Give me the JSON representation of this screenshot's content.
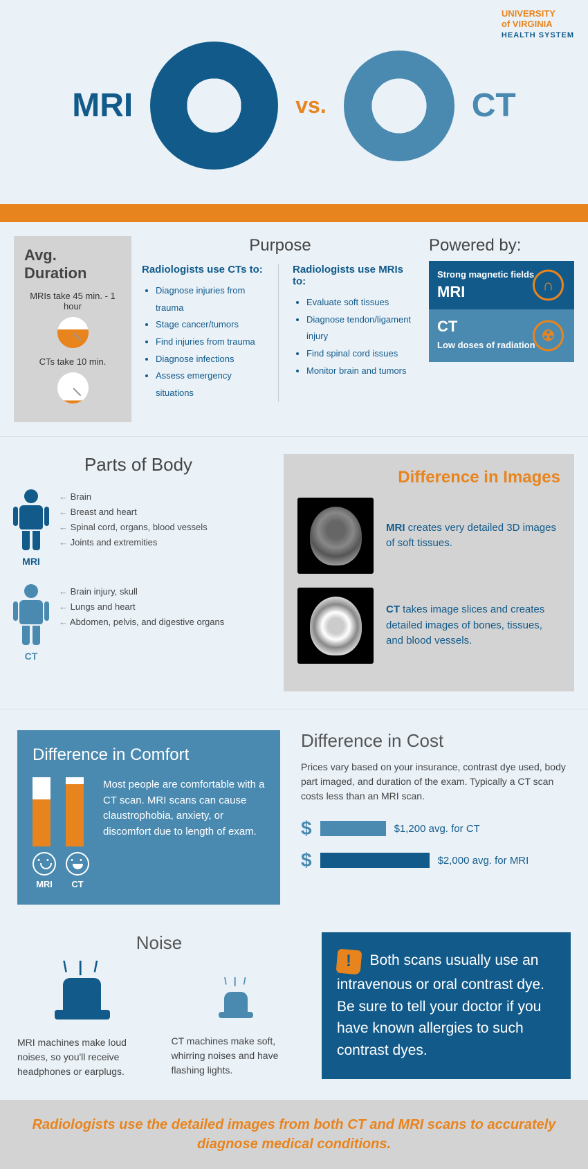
{
  "logo": {
    "line1": "UNIVERSITY",
    "line2": "of VIRGINIA",
    "line3": "HEALTH SYSTEM"
  },
  "header": {
    "mri": "MRI",
    "vs": "vs.",
    "ct": "CT"
  },
  "colors": {
    "mri": "#125a8a",
    "ct": "#4a8ab0",
    "accent": "#e8841e",
    "bg": "#eaf2f8",
    "gray": "#d3d3d3"
  },
  "duration": {
    "title": "Avg. Duration",
    "mri_text": "MRIs take 45 min. - 1 hour",
    "ct_text": "CTs take 10 min."
  },
  "purpose": {
    "title": "Purpose",
    "ct_head": "Radiologists use CTs to:",
    "ct_items": [
      "Diagnose injuries from trauma",
      "Stage cancer/tumors",
      "Find injuries from trauma",
      "Diagnose infections",
      "Assess emergency situations"
    ],
    "mri_head": "Radiologists use MRIs to:",
    "mri_items": [
      "Evaluate soft tissues",
      "Diagnose tendon/ligament injury",
      "Find spinal cord issues",
      "Monitor brain and tumors"
    ]
  },
  "powered": {
    "title": "Powered by:",
    "mri_sub": "Strong magnetic fields",
    "mri_label": "MRI",
    "ct_label": "CT",
    "ct_sub": "Low doses of radiation"
  },
  "parts": {
    "title": "Parts of Body",
    "mri_label": "MRI",
    "mri_items": [
      "Brain",
      "Breast and heart",
      "Spinal cord, organs, blood vessels",
      "Joints and extremities"
    ],
    "ct_label": "CT",
    "ct_items": [
      "Brain injury, skull",
      "Lungs and heart",
      "Abdomen, pelvis, and digestive organs"
    ]
  },
  "diff_images": {
    "title": "Difference in Images",
    "mri_bold": "MRI",
    "mri_text": " creates very detailed 3D images of soft tissues.",
    "ct_bold": "CT",
    "ct_text": " takes image slices and creates detailed images of bones, tissues, and blood vessels."
  },
  "comfort": {
    "title": "Difference in Comfort",
    "mri_fill": 68,
    "ct_fill": 90,
    "mri_label": "MRI",
    "ct_label": "CT",
    "text": "Most people are comfortable with a CT scan. MRI scans can cause claustrophobia, anxiety, or discomfort due to length of exam."
  },
  "cost": {
    "title": "Difference in Cost",
    "text": "Prices vary based on your insurance, contrast dye used, body part imaged, and duration of the exam. Typically a CT scan costs less than an MRI scan.",
    "ct_label": "$1,200 avg. for CT",
    "mri_label": "$2,000 avg. for MRI"
  },
  "noise": {
    "title": "Noise",
    "mri_text": "MRI machines make loud noises, so you'll receive headphones or earplugs.",
    "ct_text": "CT machines make soft, whirring noises and have flashing lights."
  },
  "warning": {
    "text": "Both scans usually use an intravenous or oral contrast dye. Be sure to tell your doctor if you have known allergies to such contrast dyes."
  },
  "footer": {
    "text": "Radiologists use the detailed images from both CT and MRI scans to accurately diagnose medical conditions."
  }
}
